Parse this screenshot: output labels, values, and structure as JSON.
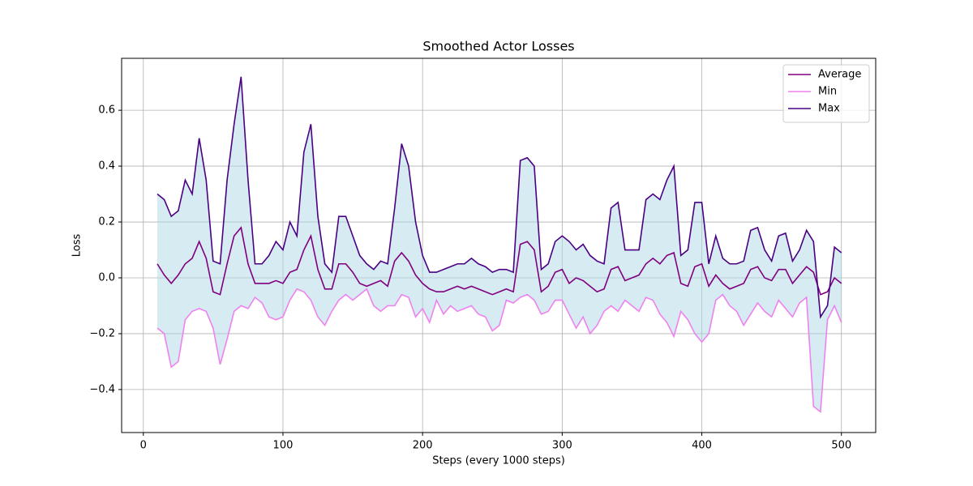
{
  "chart_data": {
    "type": "line",
    "title": "Smoothed Actor Losses",
    "x_label": "Steps (every 1000 steps)",
    "y_label": "Loss",
    "x": [
      10,
      15,
      20,
      25,
      30,
      35,
      40,
      45,
      50,
      55,
      60,
      65,
      70,
      75,
      80,
      85,
      90,
      95,
      100,
      105,
      110,
      115,
      120,
      125,
      130,
      135,
      140,
      145,
      150,
      155,
      160,
      165,
      170,
      175,
      180,
      185,
      190,
      195,
      200,
      205,
      210,
      215,
      220,
      225,
      230,
      235,
      240,
      245,
      250,
      255,
      260,
      265,
      270,
      275,
      280,
      285,
      290,
      295,
      300,
      305,
      310,
      315,
      320,
      325,
      330,
      335,
      340,
      345,
      350,
      355,
      360,
      365,
      370,
      375,
      380,
      385,
      390,
      395,
      400,
      405,
      410,
      415,
      420,
      425,
      430,
      435,
      440,
      445,
      450,
      455,
      460,
      465,
      470,
      475,
      480,
      485,
      490,
      495,
      500
    ],
    "series": [
      {
        "name": "Average",
        "color": "#800080",
        "values": [
          0.05,
          0.01,
          -0.02,
          0.01,
          0.05,
          0.07,
          0.13,
          0.07,
          -0.05,
          -0.06,
          0.05,
          0.15,
          0.18,
          0.05,
          -0.02,
          -0.02,
          -0.02,
          -0.01,
          -0.02,
          0.02,
          0.03,
          0.1,
          0.15,
          0.03,
          -0.04,
          -0.04,
          0.05,
          0.05,
          0.02,
          -0.02,
          -0.03,
          -0.02,
          -0.01,
          -0.03,
          0.06,
          0.09,
          0.06,
          0.01,
          -0.02,
          -0.04,
          -0.05,
          -0.05,
          -0.04,
          -0.03,
          -0.04,
          -0.03,
          -0.04,
          -0.05,
          -0.06,
          -0.05,
          -0.04,
          -0.05,
          0.12,
          0.13,
          0.1,
          -0.05,
          -0.03,
          0.02,
          0.03,
          -0.02,
          0.0,
          -0.01,
          -0.03,
          -0.05,
          -0.04,
          0.03,
          0.04,
          -0.01,
          0.0,
          0.01,
          0.05,
          0.07,
          0.05,
          0.08,
          0.09,
          -0.02,
          -0.03,
          0.04,
          0.05,
          -0.03,
          0.01,
          -0.02,
          -0.04,
          -0.03,
          -0.02,
          0.03,
          0.04,
          0.0,
          -0.01,
          0.03,
          0.03,
          -0.02,
          0.01,
          0.04,
          0.02,
          -0.06,
          -0.05,
          0.0,
          -0.02
        ]
      },
      {
        "name": "Min",
        "color": "#ee82ee",
        "values": [
          -0.18,
          -0.2,
          -0.32,
          -0.3,
          -0.15,
          -0.12,
          -0.11,
          -0.12,
          -0.18,
          -0.31,
          -0.22,
          -0.12,
          -0.1,
          -0.11,
          -0.07,
          -0.09,
          -0.14,
          -0.15,
          -0.14,
          -0.08,
          -0.04,
          -0.05,
          -0.08,
          -0.14,
          -0.17,
          -0.12,
          -0.08,
          -0.06,
          -0.08,
          -0.06,
          -0.04,
          -0.1,
          -0.12,
          -0.1,
          -0.1,
          -0.06,
          -0.07,
          -0.14,
          -0.11,
          -0.16,
          -0.08,
          -0.13,
          -0.1,
          -0.12,
          -0.11,
          -0.1,
          -0.13,
          -0.14,
          -0.19,
          -0.17,
          -0.08,
          -0.09,
          -0.07,
          -0.06,
          -0.08,
          -0.13,
          -0.12,
          -0.08,
          -0.08,
          -0.13,
          -0.18,
          -0.14,
          -0.2,
          -0.17,
          -0.12,
          -0.1,
          -0.12,
          -0.08,
          -0.1,
          -0.12,
          -0.07,
          -0.08,
          -0.13,
          -0.16,
          -0.21,
          -0.12,
          -0.15,
          -0.2,
          -0.23,
          -0.2,
          -0.08,
          -0.06,
          -0.1,
          -0.12,
          -0.17,
          -0.13,
          -0.09,
          -0.12,
          -0.14,
          -0.08,
          -0.11,
          -0.14,
          -0.09,
          -0.07,
          -0.46,
          -0.48,
          -0.15,
          -0.1,
          -0.16
        ]
      },
      {
        "name": "Max",
        "color": "#4b0082",
        "values": [
          0.3,
          0.28,
          0.22,
          0.24,
          0.35,
          0.3,
          0.5,
          0.35,
          0.06,
          0.05,
          0.35,
          0.55,
          0.72,
          0.35,
          0.05,
          0.05,
          0.08,
          0.13,
          0.1,
          0.2,
          0.15,
          0.45,
          0.55,
          0.22,
          0.05,
          0.02,
          0.22,
          0.22,
          0.15,
          0.08,
          0.05,
          0.03,
          0.06,
          0.05,
          0.25,
          0.48,
          0.4,
          0.2,
          0.08,
          0.02,
          0.02,
          0.03,
          0.04,
          0.05,
          0.05,
          0.07,
          0.05,
          0.04,
          0.02,
          0.03,
          0.03,
          0.02,
          0.42,
          0.43,
          0.4,
          0.03,
          0.05,
          0.13,
          0.15,
          0.13,
          0.1,
          0.12,
          0.08,
          0.06,
          0.05,
          0.25,
          0.27,
          0.1,
          0.1,
          0.1,
          0.28,
          0.3,
          0.28,
          0.35,
          0.4,
          0.08,
          0.1,
          0.27,
          0.27,
          0.05,
          0.15,
          0.07,
          0.05,
          0.05,
          0.06,
          0.17,
          0.18,
          0.1,
          0.06,
          0.15,
          0.16,
          0.06,
          0.1,
          0.17,
          0.13,
          -0.14,
          -0.1,
          0.11,
          0.09
        ]
      }
    ],
    "fill_color": "#add8e6",
    "xlim": [
      -15.55,
      524.55
    ],
    "ylim": [
      -0.554,
      0.786
    ],
    "xticks": [
      0,
      100,
      200,
      300,
      400,
      500
    ],
    "yticks": [
      {
        "value": -0.4,
        "label": "−0.4"
      },
      {
        "value": -0.2,
        "label": "−0.2"
      },
      {
        "value": 0,
        "label": "0.0"
      },
      {
        "value": 0.2,
        "label": "0.2"
      },
      {
        "value": 0.4,
        "label": "0.4"
      },
      {
        "value": 0.6,
        "label": "0.6"
      }
    ],
    "grid": true,
    "legend": "upper right"
  }
}
